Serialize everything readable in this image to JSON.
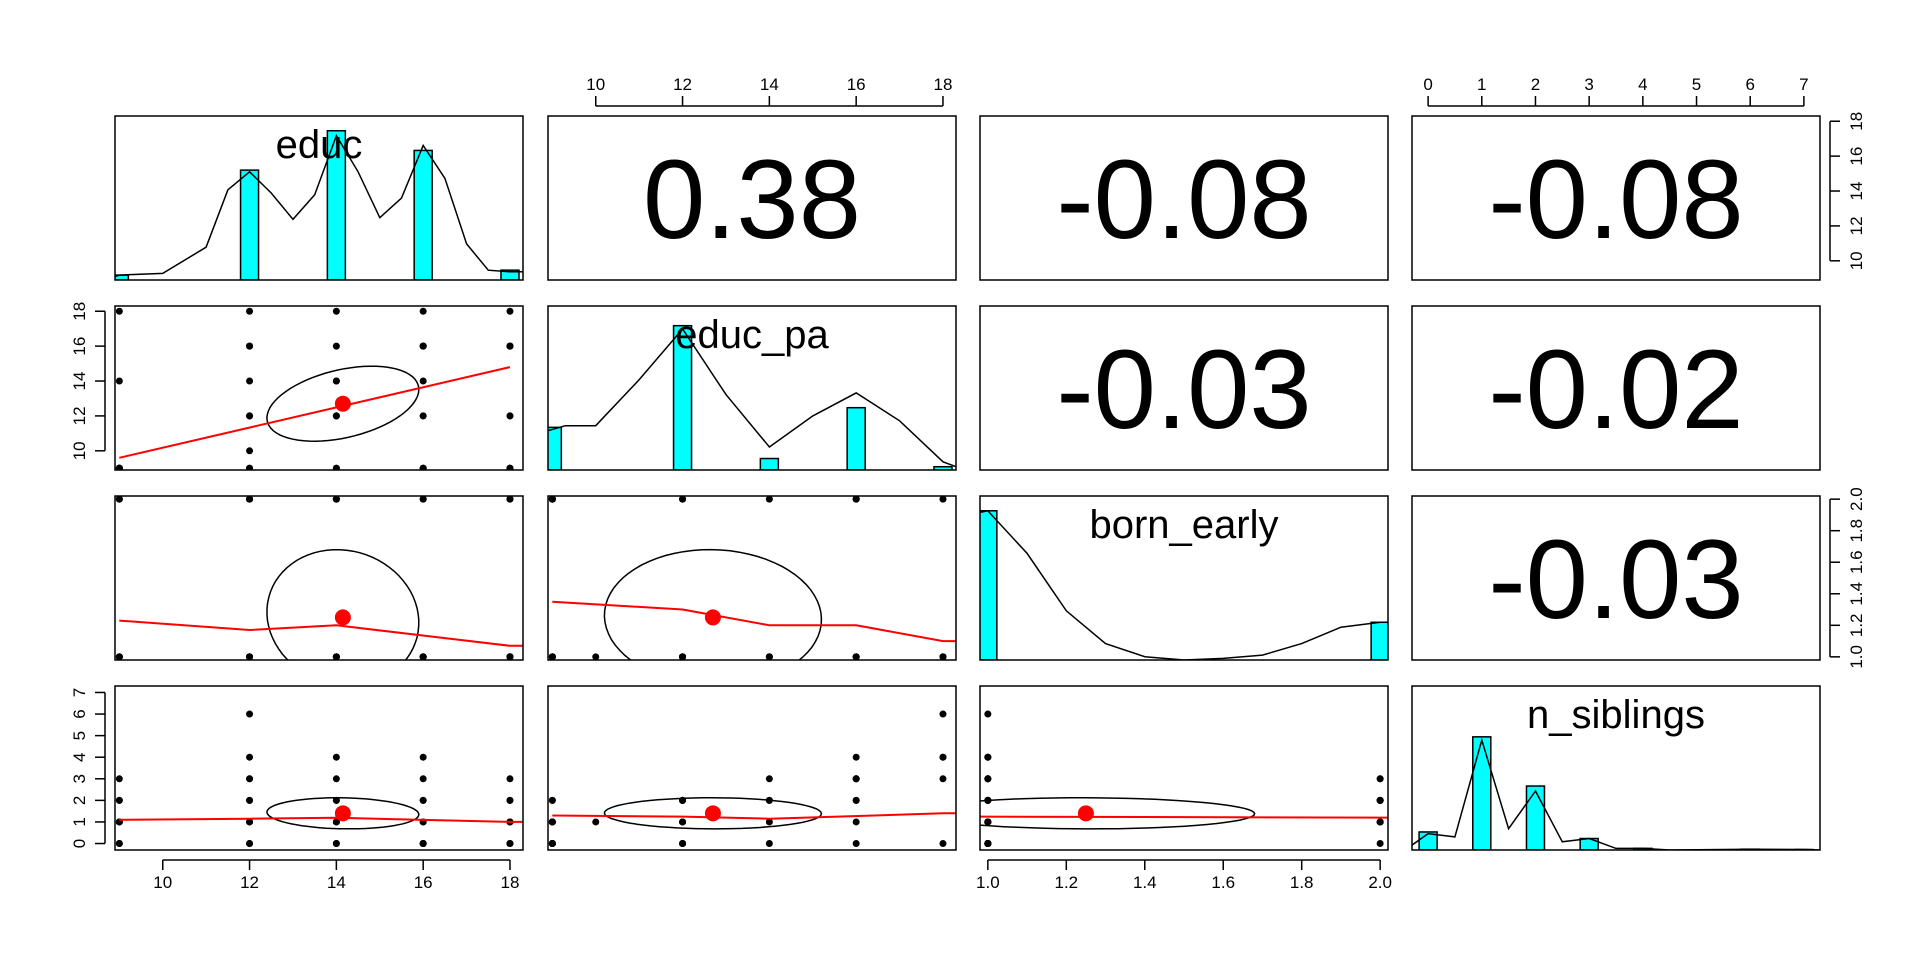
{
  "chart_data": {
    "type": "scatterplot-matrix",
    "title": "",
    "variables": [
      "educ",
      "educ_pa",
      "born_early",
      "n_siblings"
    ],
    "axis_ranges": [
      [
        8.9,
        18.3
      ],
      [
        8.9,
        18.3
      ],
      [
        0.98,
        2.02
      ],
      [
        -0.3,
        7.3
      ]
    ],
    "axis_ticks": [
      [
        "10",
        "12",
        "14",
        "16",
        "18"
      ],
      [
        "10",
        "12",
        "14",
        "16",
        "18"
      ],
      [
        "1.0",
        "1.2",
        "1.4",
        "1.6",
        "1.8",
        "2.0"
      ],
      [
        "0",
        "1",
        "2",
        "3",
        "4",
        "5",
        "6",
        "7"
      ]
    ],
    "correlations": [
      {
        "row": 0,
        "col": 1,
        "label": "0.38"
      },
      {
        "row": 0,
        "col": 2,
        "label": "-0.08"
      },
      {
        "row": 0,
        "col": 3,
        "label": "-0.08"
      },
      {
        "row": 1,
        "col": 2,
        "label": "-0.03"
      },
      {
        "row": 1,
        "col": 3,
        "label": "-0.02"
      },
      {
        "row": 2,
        "col": 3,
        "label": "-0.03"
      }
    ],
    "histograms": [
      {
        "bins": [
          [
            9,
            0.03
          ],
          [
            12,
            0.67
          ],
          [
            14,
            0.91
          ],
          [
            16,
            0.79
          ],
          [
            18,
            0.06
          ]
        ],
        "density": [
          [
            8.9,
            0.02
          ],
          [
            9,
            0.03
          ],
          [
            10,
            0.04
          ],
          [
            11,
            0.2
          ],
          [
            11.5,
            0.55
          ],
          [
            12,
            0.66
          ],
          [
            12.5,
            0.53
          ],
          [
            13,
            0.37
          ],
          [
            13.5,
            0.52
          ],
          [
            14,
            0.88
          ],
          [
            14.5,
            0.66
          ],
          [
            15,
            0.38
          ],
          [
            15.5,
            0.5
          ],
          [
            16,
            0.82
          ],
          [
            16.5,
            0.62
          ],
          [
            17,
            0.22
          ],
          [
            17.5,
            0.06
          ],
          [
            18,
            0.05
          ],
          [
            18.3,
            0.05
          ]
        ]
      },
      {
        "bins": [
          [
            9,
            0.26
          ],
          [
            12,
            0.88
          ],
          [
            14,
            0.07
          ],
          [
            16,
            0.38
          ],
          [
            18,
            0.02
          ]
        ],
        "density": [
          [
            8.9,
            0.24
          ],
          [
            9.3,
            0.27
          ],
          [
            10,
            0.27
          ],
          [
            11,
            0.55
          ],
          [
            12,
            0.86
          ],
          [
            13,
            0.46
          ],
          [
            14,
            0.14
          ],
          [
            15,
            0.33
          ],
          [
            16,
            0.47
          ],
          [
            17,
            0.3
          ],
          [
            18,
            0.05
          ],
          [
            18.3,
            0.02
          ]
        ]
      },
      {
        "bins": [
          [
            1.0,
            0.91
          ],
          [
            2.0,
            0.23
          ]
        ],
        "density": [
          [
            0.98,
            0.9
          ],
          [
            1.0,
            0.91
          ],
          [
            1.1,
            0.65
          ],
          [
            1.2,
            0.3
          ],
          [
            1.3,
            0.1
          ],
          [
            1.4,
            0.02
          ],
          [
            1.5,
            0.0
          ],
          [
            1.6,
            0.01
          ],
          [
            1.7,
            0.03
          ],
          [
            1.8,
            0.1
          ],
          [
            1.9,
            0.2
          ],
          [
            2.0,
            0.23
          ],
          [
            2.02,
            0.23
          ]
        ]
      },
      {
        "bins": [
          [
            0,
            0.11
          ],
          [
            1,
            0.69
          ],
          [
            2,
            0.39
          ],
          [
            3,
            0.07
          ],
          [
            4,
            0.01
          ],
          [
            6,
            0.005
          ],
          [
            7,
            0.003
          ]
        ],
        "density": [
          [
            -0.3,
            0.03
          ],
          [
            0,
            0.1
          ],
          [
            0.5,
            0.08
          ],
          [
            1,
            0.67
          ],
          [
            1.5,
            0.13
          ],
          [
            2,
            0.36
          ],
          [
            2.5,
            0.05
          ],
          [
            3,
            0.07
          ],
          [
            3.5,
            0.01
          ],
          [
            4,
            0.01
          ],
          [
            4.5,
            0.0
          ],
          [
            6,
            0.005
          ],
          [
            7,
            0.003
          ],
          [
            7.3,
            0.0
          ]
        ]
      }
    ],
    "points": {
      "educ": [
        9,
        9,
        9,
        9,
        9,
        9,
        9,
        9,
        12,
        12,
        12,
        12,
        12,
        12,
        12,
        12,
        12,
        12,
        14,
        14,
        14,
        14,
        14,
        14,
        14,
        14,
        14,
        16,
        16,
        16,
        16,
        16,
        16,
        16,
        16,
        16,
        16,
        18,
        18,
        18,
        18,
        18,
        18,
        18,
        18,
        18
      ],
      "educ_pa": [
        9,
        14,
        9,
        18,
        9,
        9,
        9,
        9,
        9,
        10,
        12,
        14,
        16,
        18,
        9,
        12,
        16,
        12,
        9,
        12,
        14,
        16,
        18,
        9,
        12,
        12,
        14,
        9,
        12,
        14,
        16,
        18,
        9,
        16,
        12,
        16,
        9,
        9,
        12,
        16,
        18,
        9,
        16,
        12,
        16,
        9
      ],
      "born_early": [
        1,
        1,
        2,
        2,
        1,
        1,
        1,
        1,
        1,
        1,
        1,
        1,
        1,
        1,
        2,
        2,
        2,
        1,
        1,
        1,
        1,
        1,
        1,
        2,
        2,
        1,
        2,
        1,
        1,
        1,
        1,
        1,
        2,
        2,
        1,
        1,
        1,
        1,
        1,
        1,
        1,
        2,
        2,
        1,
        1,
        1
      ],
      "n_siblings": [
        0,
        1,
        2,
        3,
        1,
        2,
        0,
        1,
        0,
        1,
        2,
        3,
        4,
        6,
        1,
        2,
        3,
        0,
        0,
        1,
        2,
        3,
        4,
        1,
        2,
        1,
        0,
        0,
        1,
        2,
        3,
        4,
        1,
        2,
        0,
        0,
        0,
        1,
        2,
        3,
        0,
        1,
        2,
        0,
        1,
        0
      ]
    },
    "lowess": [
      [],
      [
        [
          9,
          9.6
        ],
        [
          18,
          14.8
        ]
      ],
      [
        [
          9,
          1.23
        ],
        [
          12,
          1.17
        ],
        [
          14,
          1.2
        ],
        [
          18,
          1.07
        ],
        [
          18.3,
          1.07
        ]
      ],
      [
        [
          9,
          1.35
        ],
        [
          12,
          1.3
        ],
        [
          14,
          1.2
        ],
        [
          16,
          1.2
        ],
        [
          18,
          1.1
        ],
        [
          18.3,
          1.1
        ]
      ],
      [
        [
          9,
          1.1
        ],
        [
          12,
          1.15
        ],
        [
          14,
          1.19
        ],
        [
          18,
          1.0
        ],
        [
          18.3,
          1.0
        ]
      ],
      [
        [
          9,
          1.3
        ],
        [
          12,
          1.25
        ],
        [
          14,
          1.15
        ],
        [
          18,
          1.4
        ],
        [
          18.3,
          1.4
        ]
      ],
      [
        [
          0.98,
          1.25
        ],
        [
          2.0,
          1.2
        ],
        [
          2.02,
          1.2
        ]
      ]
    ],
    "centers": [
      {
        "row": 1,
        "col": 0,
        "x": 14.15,
        "y": 12.7
      },
      {
        "row": 2,
        "col": 0,
        "x": 14.15,
        "y": 1.25
      },
      {
        "row": 2,
        "col": 1,
        "x": 12.7,
        "y": 1.25
      },
      {
        "row": 3,
        "col": 0,
        "x": 14.15,
        "y": 1.4
      },
      {
        "row": 3,
        "col": 1,
        "x": 12.7,
        "y": 1.4
      },
      {
        "row": 3,
        "col": 2,
        "x": 1.25,
        "y": 1.4
      }
    ],
    "ellipses": [
      {
        "row": 1,
        "col": 0,
        "sx": 1.75,
        "sy": 2.15,
        "r": 0.38
      },
      {
        "row": 2,
        "col": 0,
        "sx": 1.75,
        "sy": 0.43,
        "r": -0.08
      },
      {
        "row": 2,
        "col": 1,
        "sx": 2.5,
        "sy": 0.43,
        "r": -0.03
      },
      {
        "row": 3,
        "col": 0,
        "sx": 1.75,
        "sy": 0.72,
        "r": -0.08
      },
      {
        "row": 3,
        "col": 1,
        "sx": 2.5,
        "sy": 0.72,
        "r": -0.02
      },
      {
        "row": 3,
        "col": 2,
        "sx": 0.43,
        "sy": 0.72,
        "r": -0.03
      }
    ],
    "colors": {
      "histogram_fill": "#00ffff",
      "lowess": "#ff0000",
      "center": "#ff0000",
      "points": "#000000"
    }
  }
}
